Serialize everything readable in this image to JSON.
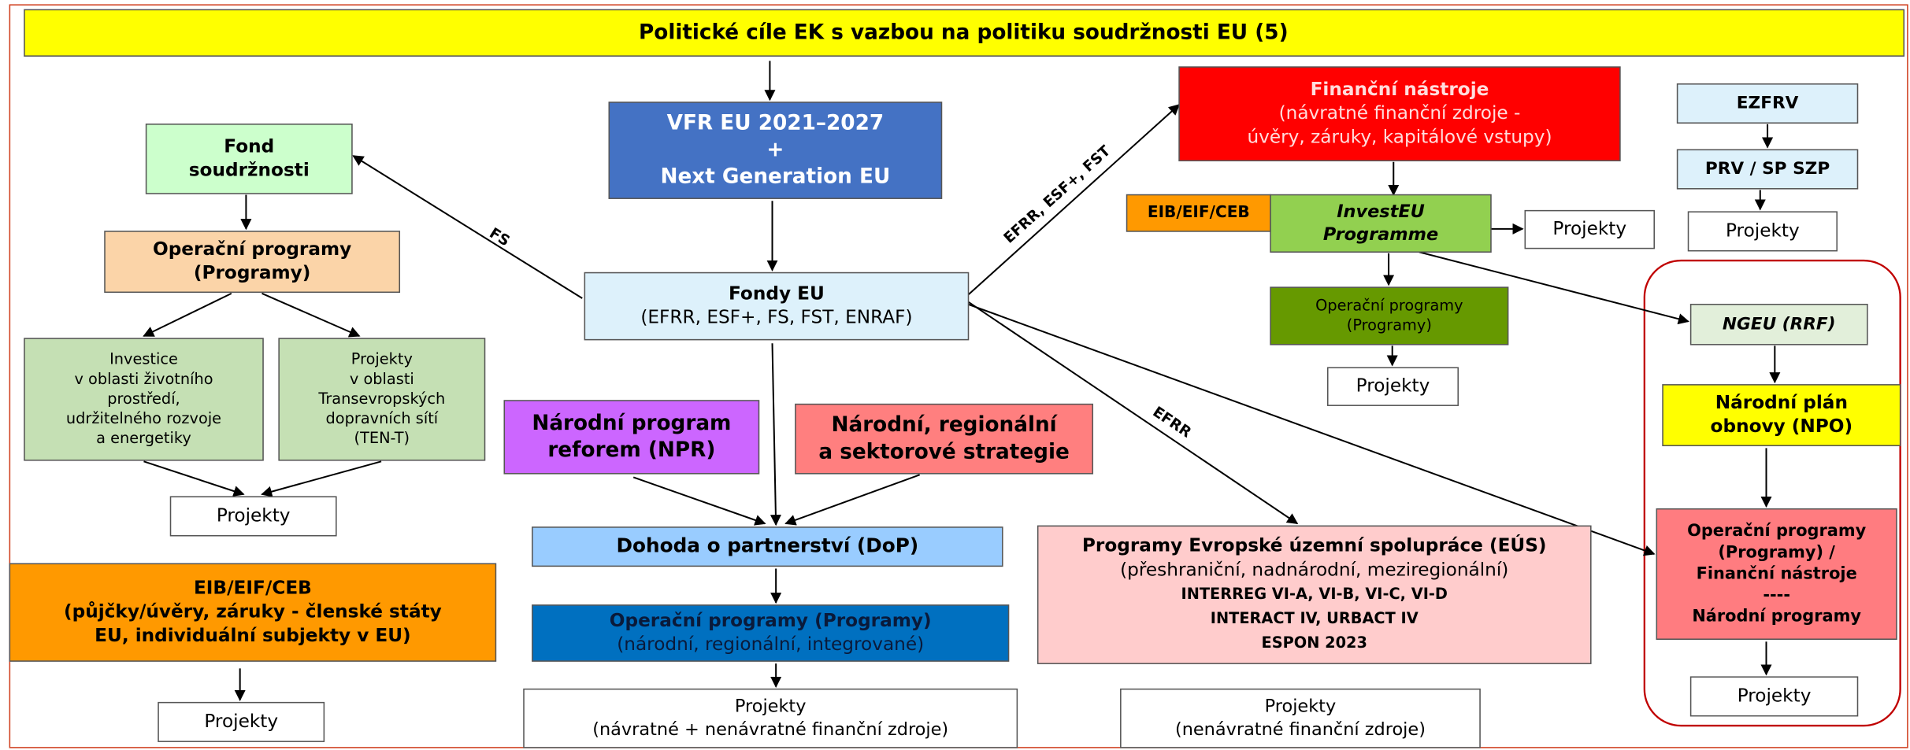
{
  "title": "Politické cíle EK s vazbou na politiku soudržnosti EU (5)",
  "boxes": [
    {
      "lines": [
        "VFR EU 2021–2027",
        "+",
        "Next Generation EU"
      ]
    },
    {
      "lines": [
        "Fond",
        "soudržnosti"
      ]
    },
    {
      "lines": [
        "Operační programy",
        "(Programy)"
      ]
    },
    {
      "lines": [
        "Investice",
        "v oblasti životního",
        "prostředí,",
        "udržitelného rozvoje",
        "a energetiky"
      ]
    },
    {
      "lines": [
        "Projekty",
        "v oblasti",
        "Transevropských",
        "dopravních sítí",
        "(TEN-T)"
      ]
    },
    {
      "lines": [
        "Projekty"
      ]
    },
    {
      "lines": [
        "EIB/EIF/CEB",
        "(půjčky/úvěry, záruky - členské státy",
        "EU, individuální subjekty v EU)"
      ]
    },
    {
      "lines": [
        "Projekty"
      ]
    },
    {
      "lines": [
        "Fondy EU",
        "(EFRR, ESF+, FS, FST, ENRAF)"
      ]
    },
    {
      "lines": [
        "Národní program",
        "reforem (NPR)"
      ]
    },
    {
      "lines": [
        "Národní, regionální",
        "a sektorové strategie"
      ]
    },
    {
      "lines": [
        "Dohoda o partnerství (DoP)"
      ]
    },
    {
      "lines": [
        "Operační programy (Programy)",
        "(národní, regionální, integrované)"
      ]
    },
    {
      "lines": [
        "Projekty",
        "(návratné + nenávratné finanční zdroje)"
      ]
    },
    {
      "lines": [
        "Finanční nástroje",
        "(návratné finanční zdroje -",
        "úvěry, záruky, kapitálové vstupy)"
      ]
    },
    {
      "lines": [
        "EIB/EIF/CEB"
      ]
    },
    {
      "lines": [
        "InvestEU",
        "Programme"
      ]
    },
    {
      "lines": [
        "Projekty"
      ]
    },
    {
      "lines": [
        "Operační programy",
        "(Programy)"
      ]
    },
    {
      "lines": [
        "Projekty"
      ]
    },
    {
      "lines": [
        "Programy Evropské územní spolupráce (EÚS)",
        "(přeshraniční, nadnárodní, meziregionální)",
        "INTERREG VI-A, VI-B, VI-C, VI-D",
        "INTERACT IV, URBACT IV",
        "ESPON 2023"
      ]
    },
    {
      "lines": [
        "Projekty",
        "(nenávratné finanční zdroje)"
      ]
    },
    {
      "lines": [
        "EZFRV"
      ]
    },
    {
      "lines": [
        "PRV / SP SZP"
      ]
    },
    {
      "lines": [
        "Projekty"
      ]
    },
    {
      "lines": [
        "NGEU (RRF)"
      ]
    },
    {
      "lines": [
        "Národní plán",
        "obnovy (NPO)"
      ]
    },
    {
      "lines": [
        "Operační programy",
        "(Programy) /",
        "Finanční nástroje",
        "----",
        "Národní programy"
      ]
    },
    {
      "lines": [
        "Projekty"
      ]
    }
  ],
  "arrow_labels": [
    "FS",
    "EFRR, ESF+, FST",
    "EFRR"
  ]
}
